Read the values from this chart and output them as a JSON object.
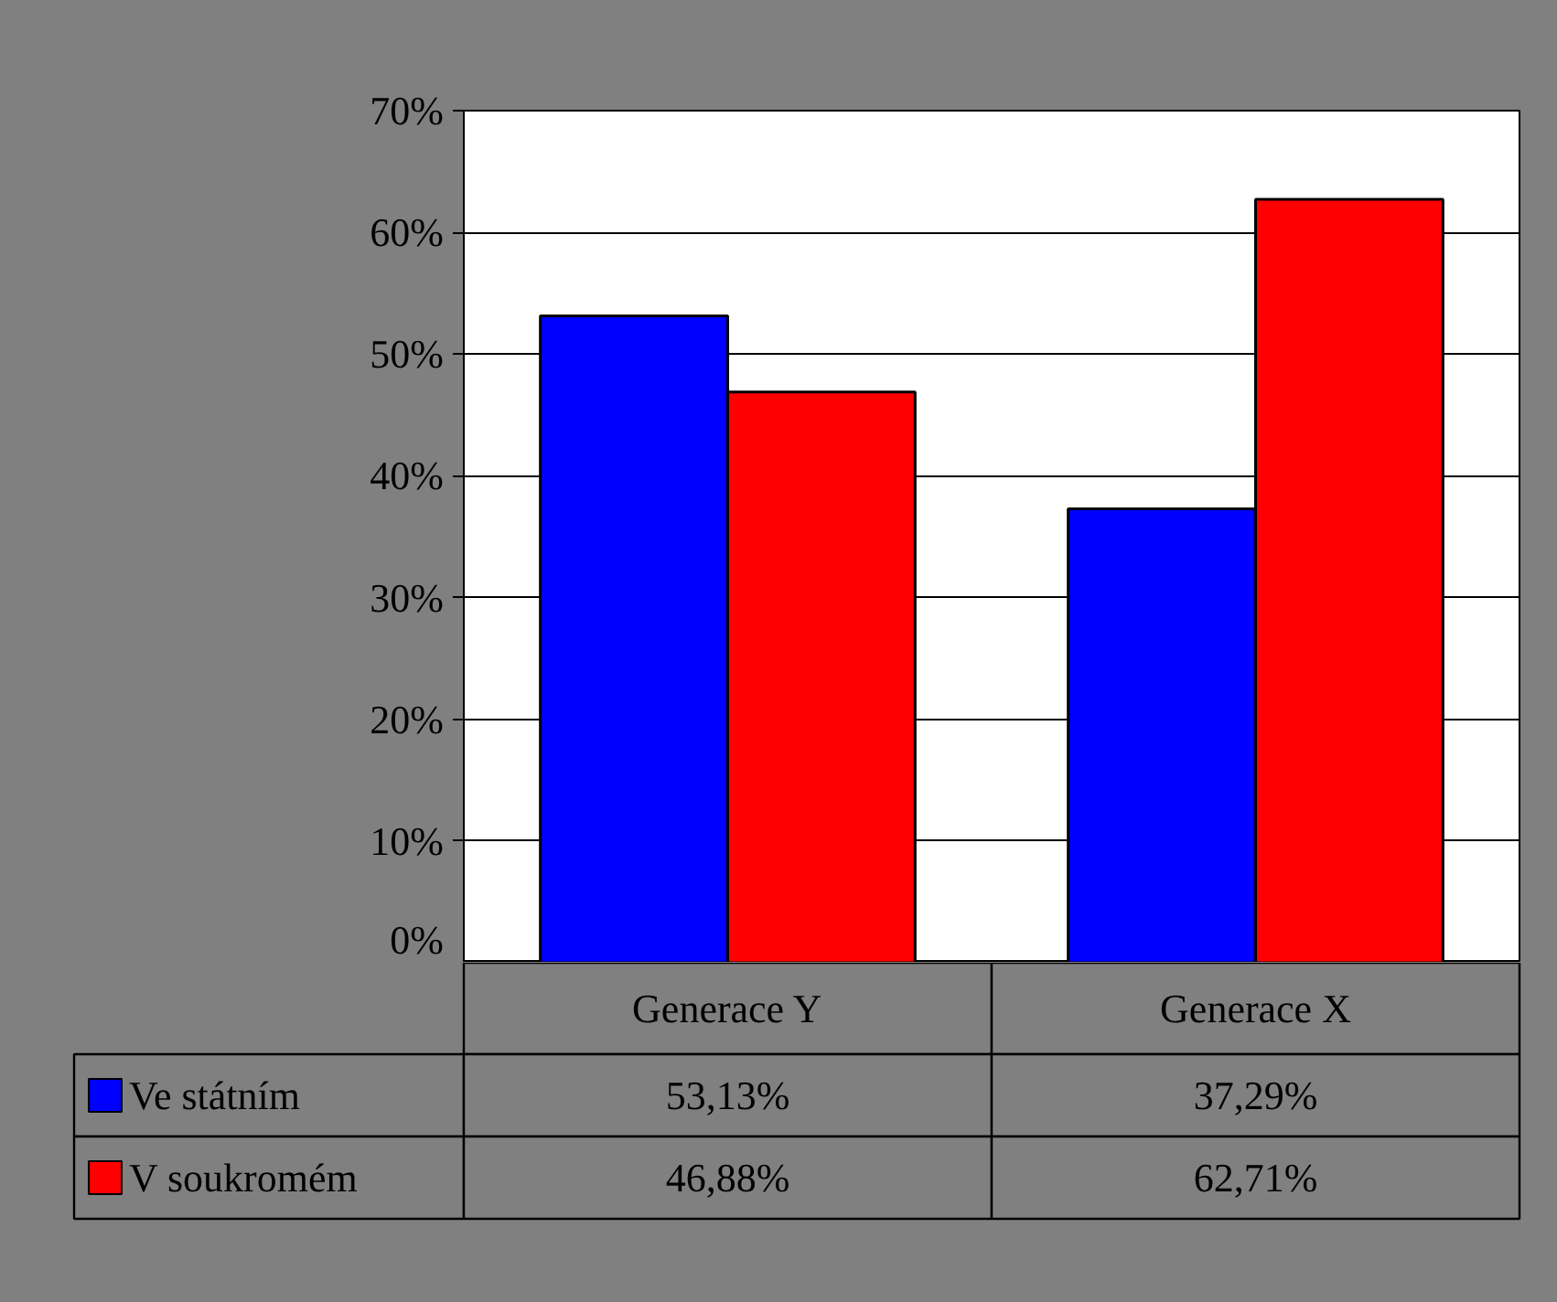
{
  "chart_data": {
    "type": "bar",
    "categories": [
      "Generace Y",
      "Generace X"
    ],
    "series": [
      {
        "name": "Ve státním",
        "color": "#0000ff",
        "values": [
          53.13,
          37.29
        ],
        "value_labels": [
          "53,13%",
          "37,29%"
        ]
      },
      {
        "name": "V soukromém",
        "color": "#ff0000",
        "values": [
          46.88,
          62.71
        ],
        "value_labels": [
          "46,88%",
          "62,71%"
        ]
      }
    ],
    "ylim": [
      0,
      70
    ],
    "yticks": [
      {
        "value": 0,
        "label": "0%"
      },
      {
        "value": 10,
        "label": "10%"
      },
      {
        "value": 20,
        "label": "20%"
      },
      {
        "value": 30,
        "label": "30%"
      },
      {
        "value": 40,
        "label": "40%"
      },
      {
        "value": 50,
        "label": "50%"
      },
      {
        "value": 60,
        "label": "60%"
      },
      {
        "value": 70,
        "label": "70%"
      }
    ],
    "grid": "y",
    "legend": "bottom left"
  }
}
